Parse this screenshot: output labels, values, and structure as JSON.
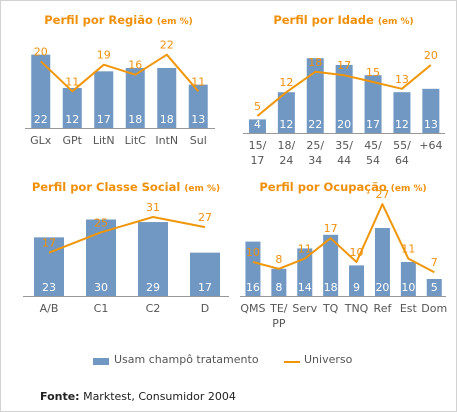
{
  "colors": {
    "bar": "#7198c2",
    "line": "#f0960a",
    "title": "#f0900a",
    "axis_text": "#555555",
    "bar_label": "#ffffff",
    "axis_line": "#999999"
  },
  "legend": {
    "bar_label": "Usam champô tratamento",
    "line_label": "Universo"
  },
  "source": {
    "label": "Fonte:",
    "text": "Marktest, Consumidor 2004"
  },
  "chart_data": [
    {
      "type": "bar",
      "title": "Perfil por Região",
      "title_unit": "(em %)",
      "categories": [
        "GLx",
        "GPt",
        "LitN",
        "LitC",
        "IntN",
        "Sul"
      ],
      "series": [
        {
          "name": "Usam champô tratamento",
          "type": "bar",
          "values": [
            22,
            12,
            17,
            18,
            18,
            13
          ]
        },
        {
          "name": "Universo",
          "type": "line",
          "values": [
            20,
            11,
            19,
            16,
            22,
            11
          ]
        }
      ],
      "ylim": [
        0,
        30
      ]
    },
    {
      "type": "bar",
      "title": "Perfil por Idade",
      "title_unit": "(em %)",
      "categories": [
        [
          "15/",
          "17"
        ],
        [
          "18/",
          "24"
        ],
        [
          "25/",
          "34"
        ],
        [
          "35/",
          "44"
        ],
        [
          "45/",
          "54"
        ],
        [
          "55/",
          "64"
        ],
        [
          "+64"
        ]
      ],
      "series": [
        {
          "name": "Usam champô tratamento",
          "type": "bar",
          "values": [
            4,
            12,
            22,
            20,
            17,
            12,
            13
          ]
        },
        {
          "name": "Universo",
          "type": "line",
          "values": [
            5,
            12,
            18,
            17,
            15,
            13,
            20
          ]
        }
      ],
      "ylim": [
        0,
        30
      ]
    },
    {
      "type": "bar",
      "title": "Perfil por Classe Social",
      "title_unit": "(em %)",
      "categories": [
        "A/B",
        "C1",
        "C2",
        "D"
      ],
      "series": [
        {
          "name": "Usam champô tratamento",
          "type": "bar",
          "values": [
            23,
            30,
            29,
            17
          ]
        },
        {
          "name": "Universo",
          "type": "line",
          "values": [
            17,
            25,
            31,
            27
          ]
        }
      ],
      "ylim": [
        0,
        40
      ]
    },
    {
      "type": "bar",
      "title": "Perfil por Ocupação",
      "title_unit": "(em %)",
      "categories": [
        [
          "QMS"
        ],
        [
          "TE/",
          "PP"
        ],
        [
          "Serv"
        ],
        [
          "TQ"
        ],
        [
          "TNQ"
        ],
        [
          "Ref"
        ],
        [
          "Est"
        ],
        [
          "Dom"
        ]
      ],
      "series": [
        {
          "name": "Usam champô tratamento",
          "type": "bar",
          "values": [
            16,
            8,
            14,
            18,
            9,
            20,
            10,
            5
          ]
        },
        {
          "name": "Universo",
          "type": "line",
          "values": [
            10,
            8,
            11,
            17,
            10,
            27,
            11,
            7
          ]
        }
      ],
      "ylim": [
        0,
        30
      ]
    }
  ]
}
